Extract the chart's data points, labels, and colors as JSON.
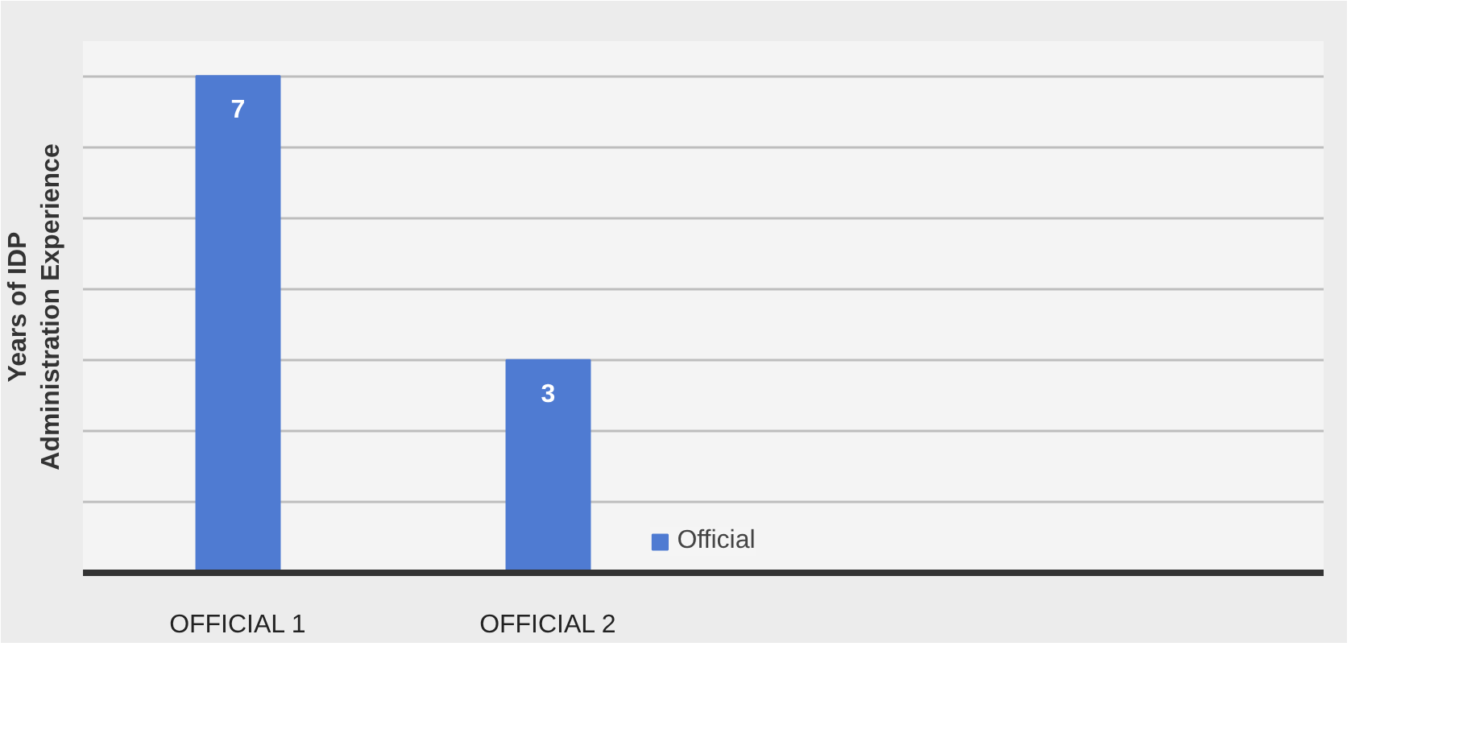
{
  "chart_data": {
    "type": "bar",
    "ylabel": "Years of IDP\nAdministration Experience",
    "categories": [
      "OFFICIAL 1",
      "OFFICIAL 2",
      null,
      null
    ],
    "series": [
      {
        "name": "Official",
        "color": "#4f7bd2",
        "values": [
          7,
          3,
          null,
          null
        ]
      }
    ],
    "tick_labels": "x",
    "grid": "y",
    "legend": "bottom",
    "data_labels": true
  }
}
